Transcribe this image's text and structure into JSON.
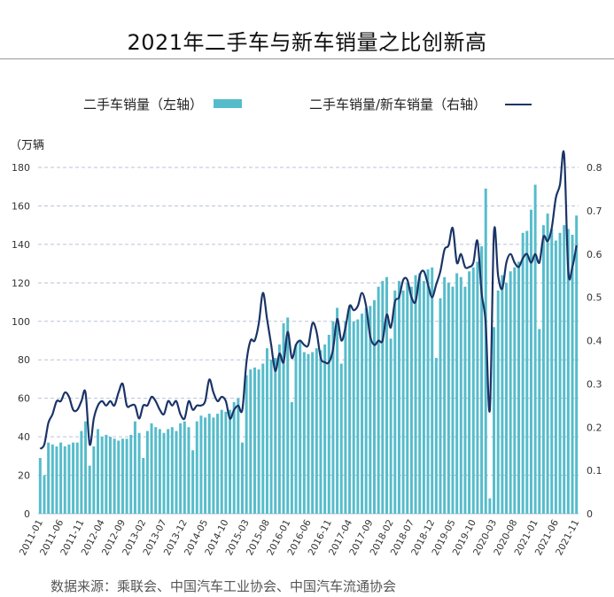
{
  "title": "2021年二手车与新车销量之比创新高",
  "legend": {
    "left_label": "二手车销量（左轴）",
    "right_label": "二手车销量/新车销量（右轴）"
  },
  "source": "数据来源：乘联会、中国汽车工业协会、中国汽车流通协会",
  "colors": {
    "bar": "#56bccb",
    "line": "#1b3467",
    "grid": "#b9c3d6"
  },
  "chart_data": {
    "type": "bar",
    "ylabel_left": "（万辆",
    "ylim_left": [
      0,
      180
    ],
    "yticks_left": [
      0,
      20,
      40,
      60,
      80,
      100,
      120,
      140,
      160,
      180
    ],
    "ylim_right": [
      0,
      0.8
    ],
    "yticks_right": [
      "0",
      "0.1",
      "0.2",
      "0.3",
      "0.4",
      "0.5",
      "0.6",
      "0.7",
      "0.8"
    ],
    "grid": true,
    "x_tick_labels": [
      "2011-01",
      "2011-06",
      "2011-11",
      "2012-04",
      "2012-09",
      "2013-02",
      "2013-07",
      "2013-12",
      "2014-05",
      "2014-10",
      "2015-03",
      "2015-08",
      "2016-01",
      "2016-06",
      "2016-11",
      "2017-04",
      "2017-09",
      "2018-02",
      "2018-07",
      "2018-12",
      "2019-05",
      "2019-10",
      "2020-03",
      "2020-08",
      "2021-01",
      "2021-06",
      "2021-11"
    ],
    "categories": [
      "2011-01",
      "2011-02",
      "2011-03",
      "2011-04",
      "2011-05",
      "2011-06",
      "2011-07",
      "2011-08",
      "2011-09",
      "2011-10",
      "2011-11",
      "2011-12",
      "2012-01",
      "2012-02",
      "2012-03",
      "2012-04",
      "2012-05",
      "2012-06",
      "2012-07",
      "2012-08",
      "2012-09",
      "2012-10",
      "2012-11",
      "2012-12",
      "2013-01",
      "2013-02",
      "2013-03",
      "2013-04",
      "2013-05",
      "2013-06",
      "2013-07",
      "2013-08",
      "2013-09",
      "2013-10",
      "2013-11",
      "2013-12",
      "2014-01",
      "2014-02",
      "2014-03",
      "2014-04",
      "2014-05",
      "2014-06",
      "2014-07",
      "2014-08",
      "2014-09",
      "2014-10",
      "2014-11",
      "2014-12",
      "2015-01",
      "2015-02",
      "2015-03",
      "2015-04",
      "2015-05",
      "2015-06",
      "2015-07",
      "2015-08",
      "2015-09",
      "2015-10",
      "2015-11",
      "2015-12",
      "2016-01",
      "2016-02",
      "2016-03",
      "2016-04",
      "2016-05",
      "2016-06",
      "2016-07",
      "2016-08",
      "2016-09",
      "2016-10",
      "2016-11",
      "2016-12",
      "2017-01",
      "2017-02",
      "2017-03",
      "2017-04",
      "2017-05",
      "2017-06",
      "2017-07",
      "2017-08",
      "2017-09",
      "2017-10",
      "2017-11",
      "2017-12",
      "2018-01",
      "2018-02",
      "2018-03",
      "2018-04",
      "2018-05",
      "2018-06",
      "2018-07",
      "2018-08",
      "2018-09",
      "2018-10",
      "2018-11",
      "2018-12",
      "2019-01",
      "2019-02",
      "2019-03",
      "2019-04",
      "2019-05",
      "2019-06",
      "2019-07",
      "2019-08",
      "2019-09",
      "2019-10",
      "2019-11",
      "2019-12",
      "2020-01",
      "2020-02",
      "2020-03",
      "2020-04",
      "2020-05",
      "2020-06",
      "2020-07",
      "2020-08",
      "2020-09",
      "2020-10",
      "2020-11",
      "2020-12",
      "2021-01",
      "2021-02",
      "2021-03",
      "2021-04",
      "2021-05",
      "2021-06",
      "2021-07",
      "2021-08",
      "2021-09",
      "2021-10",
      "2021-11"
    ],
    "series": [
      {
        "name": "二手车销量（左轴）",
        "type": "bar",
        "axis": "left",
        "values": [
          29,
          20,
          37,
          36,
          35,
          37,
          35,
          36,
          37,
          37,
          43,
          48,
          25,
          35,
          44,
          40,
          41,
          40,
          39,
          38,
          39,
          39,
          41,
          48,
          42,
          29,
          43,
          47,
          45,
          44,
          42,
          44,
          45,
          43,
          47,
          48,
          45,
          33,
          48,
          51,
          50,
          52,
          50,
          52,
          54,
          53,
          54,
          58,
          60,
          37,
          72,
          75,
          76,
          75,
          78,
          86,
          80,
          81,
          88,
          99,
          102,
          58,
          88,
          90,
          84,
          83,
          84,
          86,
          85,
          88,
          93,
          100,
          107,
          78,
          100,
          108,
          100,
          101,
          104,
          107,
          108,
          111,
          118,
          121,
          123,
          91,
          116,
          121,
          116,
          120,
          118,
          124,
          125,
          121,
          127,
          128,
          81,
          112,
          123,
          120,
          118,
          125,
          123,
          118,
          126,
          128,
          131,
          139,
          169,
          8,
          97,
          116,
          124,
          120,
          126,
          128,
          131,
          146,
          147,
          158,
          171,
          96,
          150,
          156,
          148,
          142,
          146,
          150,
          148,
          145,
          155
        ]
      },
      {
        "name": "二手车销量/新车销量（右轴）",
        "type": "line",
        "axis": "right",
        "values": [
          0.15,
          0.16,
          0.21,
          0.23,
          0.26,
          0.26,
          0.28,
          0.27,
          0.24,
          0.24,
          0.26,
          0.28,
          0.16,
          0.22,
          0.25,
          0.26,
          0.25,
          0.26,
          0.25,
          0.28,
          0.3,
          0.25,
          0.25,
          0.25,
          0.22,
          0.25,
          0.25,
          0.27,
          0.26,
          0.24,
          0.23,
          0.26,
          0.25,
          0.26,
          0.23,
          0.22,
          0.26,
          0.24,
          0.25,
          0.25,
          0.26,
          0.31,
          0.28,
          0.26,
          0.27,
          0.26,
          0.22,
          0.24,
          0.25,
          0.24,
          0.35,
          0.4,
          0.4,
          0.44,
          0.51,
          0.45,
          0.39,
          0.33,
          0.37,
          0.35,
          0.42,
          0.36,
          0.39,
          0.4,
          0.39,
          0.39,
          0.44,
          0.42,
          0.36,
          0.35,
          0.35,
          0.38,
          0.45,
          0.4,
          0.43,
          0.48,
          0.47,
          0.48,
          0.51,
          0.48,
          0.41,
          0.39,
          0.4,
          0.4,
          0.46,
          0.43,
          0.49,
          0.5,
          0.54,
          0.54,
          0.5,
          0.49,
          0.55,
          0.56,
          0.53,
          0.5,
          0.53,
          0.56,
          0.61,
          0.62,
          0.66,
          0.58,
          0.6,
          0.57,
          0.57,
          0.58,
          0.63,
          0.51,
          0.44,
          0.24,
          0.65,
          0.55,
          0.52,
          0.58,
          0.6,
          0.58,
          0.57,
          0.59,
          0.6,
          0.58,
          0.6,
          0.58,
          0.64,
          0.63,
          0.66,
          0.73,
          0.76,
          0.83,
          0.56,
          0.57,
          0.62
        ]
      }
    ]
  }
}
